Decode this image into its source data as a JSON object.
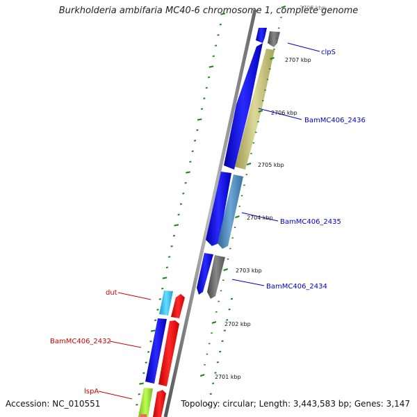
{
  "title": "Burkholderia ambifaria MC40-6 chromosome 1, complete genome",
  "accession_text": "Accession: NC_010551",
  "topology_text": "Topology: circular; Length: 3,443,583 bp; Genes: 3,147",
  "scale": {
    "ticks": [
      "2708 kbp",
      "2707 kbp",
      "2706 kbp",
      "2705 kbp",
      "2704 kbp",
      "2703 kbp",
      "2702 kbp",
      "2701 kbp"
    ]
  },
  "genes": [
    {
      "label": "clpS",
      "strand": "forward",
      "label_color": "#0000cc"
    },
    {
      "label": "BamMC406_2436",
      "strand": "forward",
      "label_color": "#0000cc"
    },
    {
      "label": "BamMC406_2435",
      "strand": "forward",
      "label_color": "#0000cc"
    },
    {
      "label": "BamMC406_2434",
      "strand": "forward",
      "label_color": "#0000cc"
    },
    {
      "label": "dut",
      "strand": "reverse",
      "label_color": "#cc0000"
    },
    {
      "label": "BamMC406_2432",
      "strand": "reverse",
      "label_color": "#cc0000"
    },
    {
      "label": "lspA",
      "strand": "reverse",
      "label_color": "#cc0000"
    }
  ],
  "colors": {
    "forward_cds": "#0000ee",
    "reverse_cds": "#ee0000",
    "backbone": "#888888",
    "tick": "#118811",
    "gene_gray": "#666666",
    "gene_khaki": "#bdb76b",
    "gene_steelblue": "#4682b4",
    "gene_cyan": "#33bbee",
    "gene_lightgreen": "#99dd33"
  }
}
